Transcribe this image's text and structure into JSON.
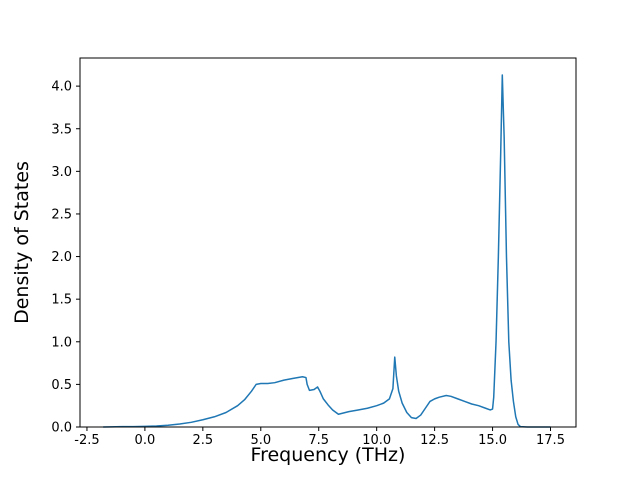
{
  "chart_data": {
    "type": "line",
    "title": "",
    "xlabel": "Frequency (THz)",
    "ylabel": "Density of States",
    "xlim": [
      -2.8,
      18.6
    ],
    "ylim": [
      0,
      4.33
    ],
    "xticks": [
      -2.5,
      0.0,
      2.5,
      5.0,
      7.5,
      10.0,
      12.5,
      15.0,
      17.5
    ],
    "xtick_labels": [
      "-2.5",
      "0.0",
      "2.5",
      "5.0",
      "7.5",
      "10.0",
      "12.5",
      "15.0",
      "17.5"
    ],
    "yticks": [
      0.0,
      0.5,
      1.0,
      1.5,
      2.0,
      2.5,
      3.0,
      3.5,
      4.0
    ],
    "ytick_labels": [
      "0.0",
      "0.5",
      "1.0",
      "1.5",
      "2.0",
      "2.5",
      "3.0",
      "3.5",
      "4.0"
    ],
    "grid": false,
    "legend": null,
    "line_color": "#1f77b4",
    "line_width": 1.5,
    "background": "#ffffff",
    "series": [
      {
        "name": "density-of-states",
        "points": [
          [
            -1.8,
            0.0
          ],
          [
            -1.5,
            0.002
          ],
          [
            -1.0,
            0.004
          ],
          [
            -0.5,
            0.005
          ],
          [
            0.0,
            0.008
          ],
          [
            0.5,
            0.012
          ],
          [
            1.0,
            0.02
          ],
          [
            1.5,
            0.035
          ],
          [
            2.0,
            0.055
          ],
          [
            2.5,
            0.085
          ],
          [
            3.0,
            0.12
          ],
          [
            3.5,
            0.17
          ],
          [
            4.0,
            0.25
          ],
          [
            4.3,
            0.32
          ],
          [
            4.6,
            0.42
          ],
          [
            4.8,
            0.5
          ],
          [
            5.0,
            0.51
          ],
          [
            5.3,
            0.51
          ],
          [
            5.6,
            0.52
          ],
          [
            6.0,
            0.55
          ],
          [
            6.4,
            0.57
          ],
          [
            6.8,
            0.59
          ],
          [
            6.95,
            0.58
          ],
          [
            7.0,
            0.5
          ],
          [
            7.1,
            0.43
          ],
          [
            7.3,
            0.44
          ],
          [
            7.45,
            0.47
          ],
          [
            7.55,
            0.42
          ],
          [
            7.7,
            0.33
          ],
          [
            7.9,
            0.26
          ],
          [
            8.1,
            0.2
          ],
          [
            8.35,
            0.15
          ],
          [
            8.5,
            0.16
          ],
          [
            8.8,
            0.18
          ],
          [
            9.2,
            0.2
          ],
          [
            9.6,
            0.22
          ],
          [
            10.0,
            0.25
          ],
          [
            10.3,
            0.28
          ],
          [
            10.55,
            0.33
          ],
          [
            10.7,
            0.45
          ],
          [
            10.78,
            0.82
          ],
          [
            10.85,
            0.6
          ],
          [
            10.95,
            0.42
          ],
          [
            11.1,
            0.28
          ],
          [
            11.3,
            0.17
          ],
          [
            11.5,
            0.11
          ],
          [
            11.7,
            0.1
          ],
          [
            11.9,
            0.14
          ],
          [
            12.1,
            0.22
          ],
          [
            12.3,
            0.3
          ],
          [
            12.5,
            0.33
          ],
          [
            12.7,
            0.35
          ],
          [
            13.0,
            0.37
          ],
          [
            13.2,
            0.36
          ],
          [
            13.5,
            0.33
          ],
          [
            13.8,
            0.3
          ],
          [
            14.1,
            0.27
          ],
          [
            14.4,
            0.25
          ],
          [
            14.7,
            0.22
          ],
          [
            14.9,
            0.2
          ],
          [
            15.0,
            0.21
          ],
          [
            15.05,
            0.35
          ],
          [
            15.15,
            1.0
          ],
          [
            15.25,
            2.0
          ],
          [
            15.35,
            3.2
          ],
          [
            15.42,
            4.13
          ],
          [
            15.5,
            3.4
          ],
          [
            15.6,
            2.0
          ],
          [
            15.7,
            1.0
          ],
          [
            15.8,
            0.55
          ],
          [
            15.9,
            0.3
          ],
          [
            16.0,
            0.12
          ],
          [
            16.1,
            0.03
          ],
          [
            16.2,
            0.005
          ],
          [
            16.5,
            0.0
          ],
          [
            17.0,
            0.0
          ],
          [
            17.5,
            0.0
          ]
        ]
      }
    ]
  }
}
